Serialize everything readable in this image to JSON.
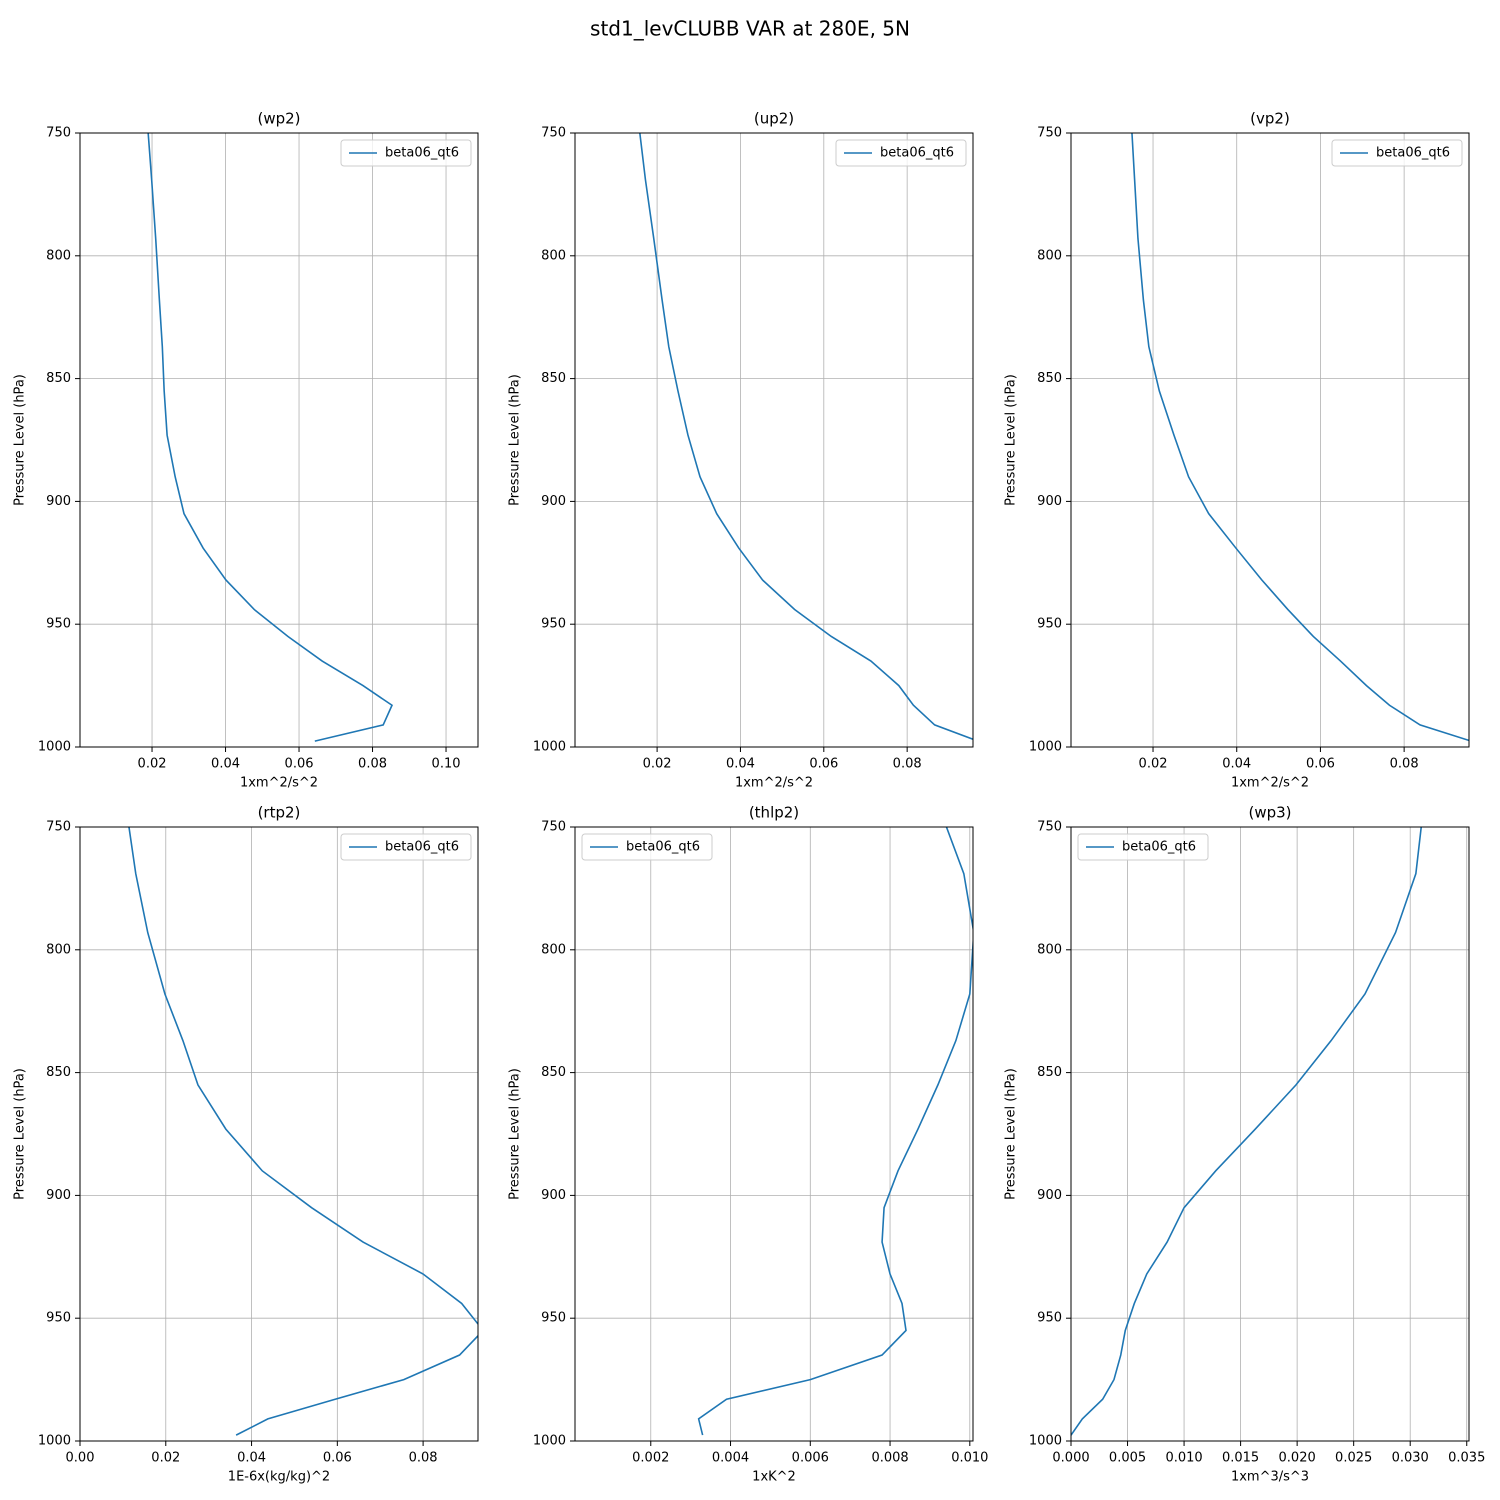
{
  "title": "std1_levCLUBB VAR at 280E, 5N",
  "chart_data": [
    {
      "type": "line",
      "title": "(wp2)",
      "xlabel": "1xm^2/s^2",
      "ylabel": "Pressure Level (hPa)",
      "y": [
        745,
        769,
        793,
        818,
        837,
        855,
        873,
        890,
        905,
        919,
        932,
        944,
        955,
        965,
        975,
        983,
        991,
        997.6
      ],
      "series": [
        {
          "name": "beta06_qt6",
          "color": "#1f77b4",
          "values": [
            0.0187,
            0.0199,
            0.021,
            0.022,
            0.0228,
            0.0233,
            0.0241,
            0.0263,
            0.0287,
            0.0339,
            0.0401,
            0.0478,
            0.057,
            0.0663,
            0.0774,
            0.0853,
            0.0829,
            0.0643
          ]
        }
      ],
      "xlim": [
        0.0004,
        0.1087
      ],
      "xticks": [
        0.02,
        0.04,
        0.06,
        0.08,
        {
          "value": 0.1,
          "label": "0.10"
        }
      ],
      "ylim": [
        1000,
        750
      ],
      "yticks": [
        750,
        800,
        850,
        900,
        950,
        1000
      ],
      "grid": true,
      "legend": "upper right"
    },
    {
      "type": "line",
      "title": "(up2)",
      "xlabel": "1xm^2/s^2",
      "ylabel": "Pressure Level (hPa)",
      "y": [
        745,
        769,
        793,
        818,
        837,
        855,
        873,
        890,
        905,
        919,
        932,
        944,
        955,
        965,
        975,
        983,
        991,
        997.6
      ],
      "series": [
        {
          "name": "beta06_qt6",
          "color": "#1f77b4",
          "values": [
            0.0155,
            0.0172,
            0.0192,
            0.0212,
            0.0228,
            0.025,
            0.0274,
            0.0303,
            0.0343,
            0.0396,
            0.0453,
            0.053,
            0.0618,
            0.0713,
            0.078,
            0.0815,
            0.0866,
            0.097
          ]
        }
      ],
      "xlim": [
        0.0003,
        0.0958
      ],
      "xticks": [
        0.02,
        0.04,
        0.06,
        0.08
      ],
      "ylim": [
        1000,
        750
      ],
      "yticks": [
        750,
        800,
        850,
        900,
        950,
        1000
      ],
      "grid": true,
      "legend": "upper right"
    },
    {
      "type": "line",
      "title": "(vp2)",
      "xlabel": "1xm^2/s^2",
      "ylabel": "Pressure Level (hPa)",
      "y": [
        745,
        769,
        793,
        818,
        837,
        855,
        873,
        890,
        905,
        919,
        932,
        944,
        955,
        965,
        975,
        983,
        991,
        997.6
      ],
      "series": [
        {
          "name": "beta06_qt6",
          "color": "#1f77b4",
          "values": [
            0.0148,
            0.0156,
            0.0164,
            0.0177,
            0.019,
            0.0215,
            0.025,
            0.0285,
            0.0333,
            0.0398,
            0.046,
            0.0522,
            0.0583,
            0.0648,
            0.071,
            0.0765,
            0.0838,
            0.096
          ]
        }
      ],
      "xlim": [
        0.0004,
        0.0955
      ],
      "xticks": [
        0.02,
        0.04,
        0.06,
        0.08
      ],
      "ylim": [
        1000,
        750
      ],
      "yticks": [
        750,
        800,
        850,
        900,
        950,
        1000
      ],
      "grid": true,
      "legend": "upper right"
    },
    {
      "type": "line",
      "title": "(rtp2)",
      "xlabel": "1E-6x(kg/kg)^2",
      "ylabel": "Pressure Level (hPa)",
      "y": [
        745,
        769,
        793,
        818,
        837,
        855,
        873,
        890,
        905,
        919,
        932,
        944,
        955,
        965,
        975,
        983,
        991,
        997.6
      ],
      "series": [
        {
          "name": "beta06_qt6",
          "color": "#1f77b4",
          "values": [
            0.011,
            0.013,
            0.0158,
            0.0198,
            0.024,
            0.0275,
            0.034,
            0.0425,
            0.054,
            0.066,
            0.08,
            0.089,
            0.094,
            0.0885,
            0.0755,
            0.0595,
            0.0438,
            0.0364
          ]
        }
      ],
      "xlim": [
        0,
        0.0928
      ],
      "xticks": [
        {
          "value": 0,
          "label": "0.00"
        },
        0.02,
        0.04,
        0.06,
        0.08
      ],
      "ylim": [
        1000,
        750
      ],
      "yticks": [
        750,
        800,
        850,
        900,
        950,
        1000
      ],
      "grid": true,
      "legend": "upper right"
    },
    {
      "type": "line",
      "title": "(thlp2)",
      "xlabel": "1xK^2",
      "ylabel": "Pressure Level (hPa)",
      "y": [
        745,
        769,
        793,
        818,
        837,
        855,
        873,
        890,
        905,
        919,
        932,
        944,
        955,
        965,
        975,
        983,
        991,
        997.6
      ],
      "series": [
        {
          "name": "beta06_qt6",
          "color": "#1f77b4",
          "values": [
            0.0093,
            0.00985,
            0.0101,
            0.01,
            0.00965,
            0.0092,
            0.0087,
            0.0082,
            0.00785,
            0.0078,
            0.008,
            0.0083,
            0.0084,
            0.0078,
            0.006,
            0.0039,
            0.0032,
            0.0033
          ]
        }
      ],
      "xlim": [
        0.0001,
        0.01008
      ],
      "xticks": [
        0.002,
        0.004,
        0.006,
        0.008,
        {
          "value": 0.01,
          "label": "0.010"
        }
      ],
      "ylim": [
        1000,
        750
      ],
      "yticks": [
        750,
        800,
        850,
        900,
        950,
        1000
      ],
      "grid": true,
      "legend": "upper left"
    },
    {
      "type": "line",
      "title": "(wp3)",
      "xlabel": "1xm^3/s^3",
      "ylabel": "Pressure Level (hPa)",
      "y": [
        745,
        769,
        793,
        818,
        837,
        855,
        873,
        890,
        905,
        919,
        932,
        944,
        955,
        965,
        975,
        983,
        991,
        997.6
      ],
      "series": [
        {
          "name": "beta06_qt6",
          "color": "#1f77b4",
          "values": [
            0.0311,
            0.0305,
            0.0287,
            0.026,
            0.023,
            0.0199,
            0.0163,
            0.0128,
            0.01,
            0.0085,
            0.0067,
            0.0056,
            0.0048,
            0.0044,
            0.0038,
            0.0028,
            0.001,
            0
          ]
        }
      ],
      "xlim": [
        0,
        0.0352
      ],
      "xticks": [
        {
          "value": 0,
          "label": "0.000"
        },
        {
          "value": 0.005,
          "label": "0.005"
        },
        {
          "value": 0.01,
          "label": "0.010"
        },
        {
          "value": 0.015,
          "label": "0.015"
        },
        {
          "value": 0.02,
          "label": "0.020"
        },
        {
          "value": 0.025,
          "label": "0.025"
        },
        {
          "value": 0.03,
          "label": "0.030"
        },
        {
          "value": 0.035,
          "label": "0.035"
        }
      ],
      "ylim": [
        1000,
        750
      ],
      "yticks": [
        750,
        800,
        850,
        900,
        950,
        1000
      ],
      "grid": true,
      "legend": "upper left"
    }
  ]
}
